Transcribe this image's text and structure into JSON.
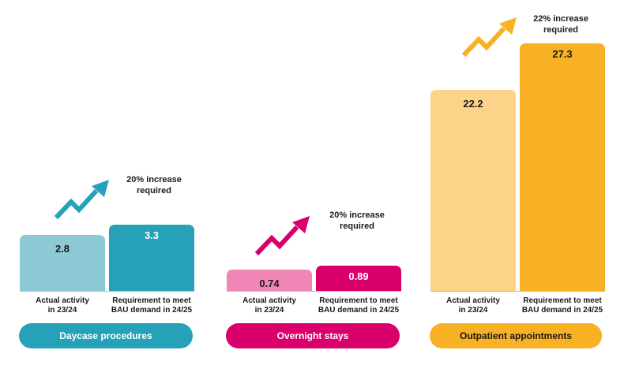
{
  "chart_data": [
    {
      "type": "bar",
      "title": "Daycase procedures",
      "categories": [
        "Actual activity\nin 23/24",
        "Requirement to meet\nBAU demand in 24/25"
      ],
      "values": [
        2.8,
        3.3
      ],
      "value_labels": [
        "2.8",
        "3.3"
      ],
      "annotation": "20% increase\nrequired",
      "colors": {
        "actual": "#8ecad6",
        "requirement": "#25a2b8",
        "pill": "#25a2b8",
        "pill_text": "#ffffff",
        "arrow": "#25a2b8",
        "actual_label": "#1a1a1a",
        "requirement_label": "#ffffff"
      }
    },
    {
      "type": "bar",
      "title": "Overnight stays",
      "categories": [
        "Actual activity\nin 23/24",
        "Requirement to meet\nBAU demand in 24/25"
      ],
      "values": [
        0.74,
        0.89
      ],
      "value_labels": [
        "0.74",
        "0.89"
      ],
      "annotation": "20% increase\nrequired",
      "colors": {
        "actual": "#ef86b5",
        "requirement": "#d9006c",
        "pill": "#d9006c",
        "pill_text": "#ffffff",
        "arrow": "#d9006c",
        "actual_label": "#1a1a1a",
        "requirement_label": "#ffffff"
      }
    },
    {
      "type": "bar",
      "title": "Outpatient appointments",
      "categories": [
        "Actual activity\nin 23/24",
        "Requirement to meet\nBAU demand in 24/25"
      ],
      "values": [
        22.2,
        27.3
      ],
      "value_labels": [
        "22.2",
        "27.3"
      ],
      "annotation": "22% increase\nrequired",
      "colors": {
        "actual": "#fdd38a",
        "requirement": "#f8b124",
        "pill": "#f8b124",
        "pill_text": "#1a1a1a",
        "arrow": "#f8b124",
        "actual_label": "#1a1a1a",
        "requirement_label": "#1a1a1a"
      }
    }
  ]
}
